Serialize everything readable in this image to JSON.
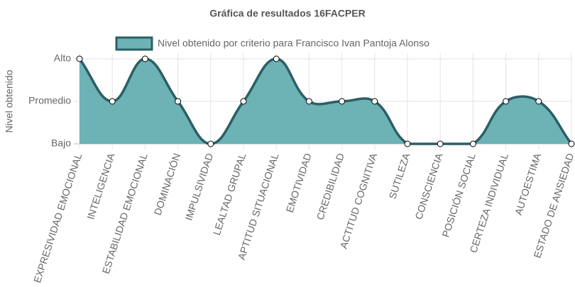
{
  "chart_data": {
    "type": "line",
    "title": "Gráfica de resultados 16FACPER",
    "y_label": "Nivel obtenido",
    "categories": [
      "EXPRESIVIDAD EMOCIONAL",
      "INTELIGENCIA",
      "ESTABILIDAD EMOCIONAL",
      "DOMINACIÓN",
      "IMPULSIVIDAD",
      "LEALTAD GRUPAL",
      "APTITUD SITUACIONAL",
      "EMOTIVIDAD",
      "CREDIBILIDAD",
      "ACTITUD COGNITIVA",
      "SUTILEZA",
      "CONSCIENCIA",
      "POSICIÓN SOCIAL",
      "CERTEZA INDIVIDUAL",
      "AUTOESTIMA",
      "ESTADO DE ANSIEDAD"
    ],
    "series": [
      {
        "name": "Nivel obtenido por criterio para Francisco Ivan Pantoja Alonso",
        "color": "#2b5f65",
        "fill_color": "#6db2b5",
        "values": [
          3,
          2,
          3,
          2,
          1,
          2,
          3,
          2,
          2,
          2,
          1,
          1,
          1,
          2,
          2,
          1
        ]
      }
    ],
    "ylim": [
      1,
      3
    ],
    "yticks": [
      {
        "value": 1,
        "label": "Bajo"
      },
      {
        "value": 2,
        "label": "Promedio"
      },
      {
        "value": 3,
        "label": "Alto"
      }
    ],
    "grid": true,
    "legend": "top"
  }
}
